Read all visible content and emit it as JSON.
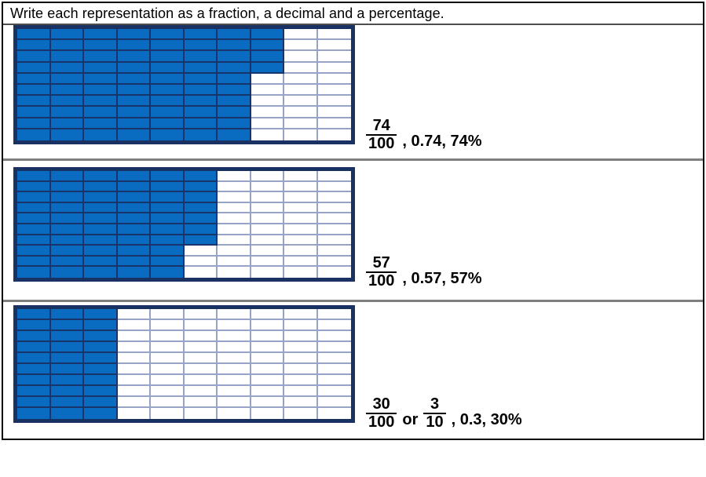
{
  "title": "Write each representation as a fraction, a decimal and a percentage.",
  "colors": {
    "shaded_fill": "#0a6cc0",
    "shaded_line": "#17356b",
    "unshaded_line": "#97a3c4",
    "grid_border": "#1a3263",
    "separator": "#7f7f7f",
    "title_separator": "#4d4d4d",
    "frame": "#000000"
  },
  "problems": [
    {
      "grid": {
        "rows": 10,
        "cols": 10,
        "total_cells": 100,
        "shaded_cells": 74,
        "fill_order": "column-major"
      },
      "answer": {
        "fraction1": {
          "numerator": "74",
          "denominator": "100"
        },
        "suffix": ", 0.74, 74%"
      }
    },
    {
      "grid": {
        "rows": 10,
        "cols": 10,
        "total_cells": 100,
        "shaded_cells": 57,
        "fill_order": "column-major"
      },
      "answer": {
        "fraction1": {
          "numerator": "57",
          "denominator": "100"
        },
        "suffix": ", 0.57, 57%"
      }
    },
    {
      "grid": {
        "rows": 10,
        "cols": 10,
        "total_cells": 100,
        "shaded_cells": 30,
        "fill_order": "column-major"
      },
      "answer": {
        "fraction1": {
          "numerator": "30",
          "denominator": "100"
        },
        "conjunction": "or",
        "fraction2": {
          "numerator": "3",
          "denominator": "10"
        },
        "suffix": ", 0.3, 30%"
      }
    }
  ]
}
